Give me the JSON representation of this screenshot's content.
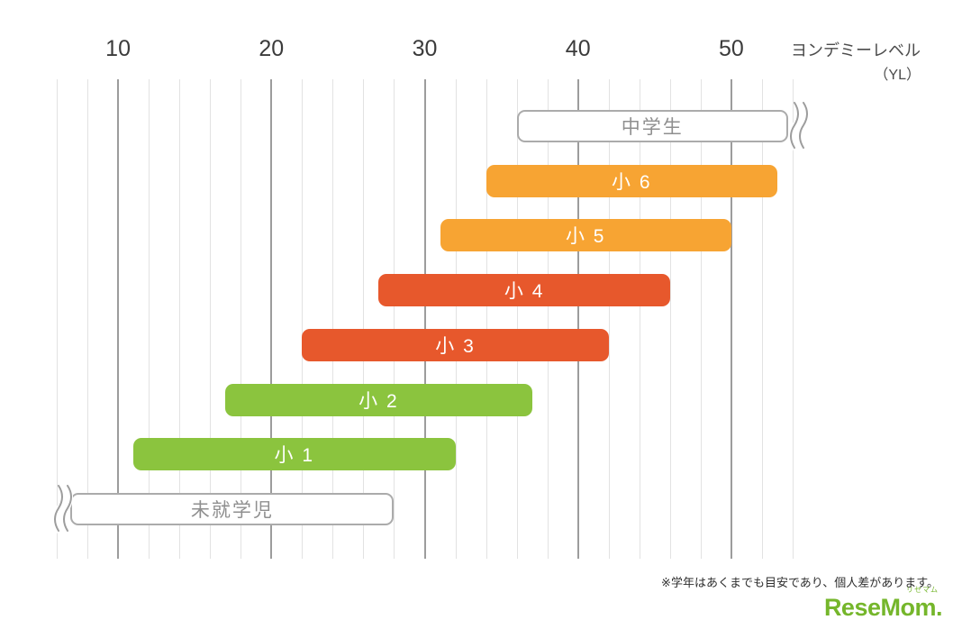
{
  "axis": {
    "title": "ヨンデミーレベル",
    "unit": "（YL）"
  },
  "footnote": "※学年はあくまでも目安であり、個人差があります。",
  "logo": {
    "furigana": "リセマム",
    "text": "ReseMom",
    "period": ".",
    "color": "#75B62B"
  },
  "chart_data": {
    "type": "bar",
    "orientation": "horizontal",
    "title": "",
    "xlabel": "ヨンデミーレベル（YL）",
    "ylabel": "",
    "xlim": [
      6,
      54
    ],
    "x_ticks": [
      10,
      20,
      30,
      40,
      50
    ],
    "minor_grid_step": 2,
    "grid": true,
    "legend": false,
    "series": [
      {
        "label": "中学生",
        "start": 36,
        "end": 54,
        "open_ended": "right",
        "fill": "#FFFFFF",
        "border": "#ABABAB",
        "text_color": "#8F8F8F"
      },
      {
        "label": "小 6",
        "start": 34,
        "end": 53,
        "fill": "#F7A433",
        "text_color": "#FFFFFF"
      },
      {
        "label": "小 5",
        "start": 31,
        "end": 50,
        "fill": "#F7A433",
        "text_color": "#FFFFFF"
      },
      {
        "label": "小 4",
        "start": 27,
        "end": 46,
        "fill": "#E7582C",
        "text_color": "#FFFFFF"
      },
      {
        "label": "小 3",
        "start": 22,
        "end": 42,
        "fill": "#E7582C",
        "text_color": "#FFFFFF"
      },
      {
        "label": "小 2",
        "start": 17,
        "end": 37,
        "fill": "#8BC43E",
        "text_color": "#FFFFFF"
      },
      {
        "label": "小 1",
        "start": 11,
        "end": 32,
        "fill": "#8BC43E",
        "text_color": "#FFFFFF"
      },
      {
        "label": "未就学児",
        "start": 6,
        "end": 28,
        "open_ended": "left",
        "fill": "#FFFFFF",
        "border": "#ABABAB",
        "text_color": "#8F8F8F"
      }
    ]
  }
}
